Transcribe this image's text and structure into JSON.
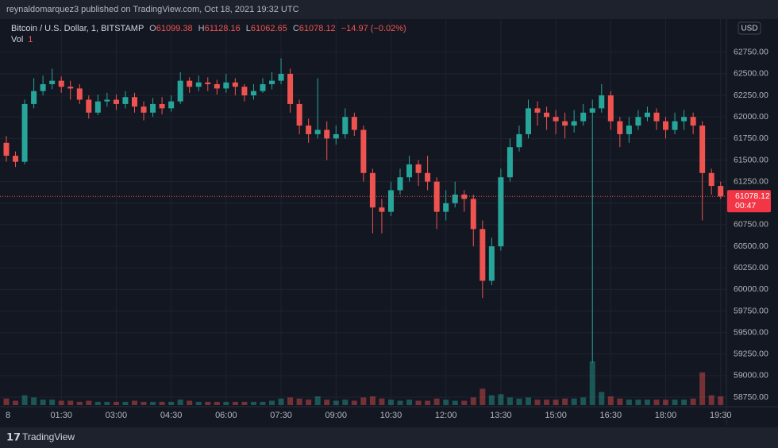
{
  "page_header": "reynaldomarquez3 published on TradingView.com, Oct 18, 2021 19:32 UTC",
  "footer_brand": "TradingView",
  "currency": "USD",
  "legend": {
    "symbol": "Bitcoin / U.S. Dollar, 1, BITSTAMP",
    "open_label": "O",
    "open": 61099.38,
    "high_label": "H",
    "high": 61128.16,
    "low_label": "L",
    "low": 61062.65,
    "close_label": "C",
    "close": 61078.12,
    "change": "−14.97 (−0.02%)",
    "volume_label": "Vol",
    "volume": 1
  },
  "countdown": "00:47",
  "chart_data": {
    "type": "candlestick",
    "up_color": "#26a69a",
    "down_color": "#ef5350",
    "grid": true,
    "x": [
      "00:00",
      "00:15",
      "00:30",
      "00:45",
      "01:00",
      "01:15",
      "01:30",
      "01:45",
      "02:00",
      "02:15",
      "02:30",
      "02:45",
      "03:00",
      "03:15",
      "03:30",
      "03:45",
      "04:00",
      "04:15",
      "04:30",
      "04:45",
      "05:00",
      "05:15",
      "05:30",
      "05:45",
      "06:00",
      "06:15",
      "06:30",
      "06:45",
      "07:00",
      "07:15",
      "07:30",
      "07:45",
      "08:00",
      "08:15",
      "08:30",
      "08:45",
      "09:00",
      "09:15",
      "09:30",
      "09:45",
      "10:00",
      "10:15",
      "10:30",
      "10:45",
      "11:00",
      "11:15",
      "11:30",
      "11:45",
      "12:00",
      "12:15",
      "12:30",
      "12:45",
      "13:00",
      "13:15",
      "13:30",
      "13:45",
      "14:00",
      "14:15",
      "14:30",
      "14:45",
      "15:00",
      "15:15",
      "15:30",
      "15:45",
      "16:00",
      "16:15",
      "16:30",
      "16:45",
      "17:00",
      "17:15",
      "17:30",
      "17:45",
      "18:00",
      "18:15",
      "18:30",
      "18:45",
      "19:00",
      "19:15",
      "19:30"
    ],
    "open": [
      61700,
      61550,
      61480,
      62150,
      62300,
      62380,
      62420,
      62350,
      62330,
      62200,
      62050,
      62180,
      62200,
      62150,
      62230,
      62120,
      62050,
      62150,
      62100,
      62180,
      62420,
      62350,
      62400,
      62380,
      62330,
      62400,
      62350,
      62250,
      62300,
      62380,
      62420,
      62500,
      62150,
      61900,
      61800,
      61850,
      61750,
      61800,
      62000,
      61850,
      61350,
      60950,
      60900,
      61150,
      61300,
      61450,
      61350,
      61250,
      60900,
      61000,
      61100,
      61050,
      60700,
      60100,
      60500,
      61300,
      61650,
      61800,
      62100,
      62050,
      62000,
      61950,
      61900,
      61950,
      62050,
      62100,
      62250,
      61950,
      61800,
      61900,
      62000,
      62050,
      61950,
      61850,
      61950,
      62000,
      61900,
      61350,
      61200
    ],
    "high": [
      61780,
      61600,
      62200,
      62450,
      62480,
      62560,
      62470,
      62420,
      62380,
      62250,
      62260,
      62280,
      62260,
      62300,
      62280,
      62180,
      62220,
      62230,
      62250,
      62520,
      62460,
      62480,
      62460,
      62430,
      62500,
      62450,
      62380,
      62380,
      62450,
      62520,
      62680,
      62560,
      62200,
      61980,
      62450,
      61950,
      61900,
      62100,
      62050,
      61900,
      61400,
      61050,
      61250,
      61400,
      61550,
      61500,
      61550,
      61300,
      61150,
      61250,
      61150,
      61100,
      60800,
      60600,
      61400,
      61750,
      61900,
      62200,
      62180,
      62120,
      62080,
      62050,
      62080,
      62150,
      62200,
      62380,
      62300,
      62000,
      62000,
      62080,
      62120,
      62100,
      62000,
      62050,
      62080,
      62050,
      61950,
      61400,
      61250
    ],
    "low": [
      61480,
      61420,
      61450,
      62100,
      62250,
      62320,
      62280,
      62200,
      62150,
      61980,
      62020,
      62120,
      62080,
      62100,
      62050,
      61960,
      62000,
      62030,
      62060,
      62150,
      62280,
      62300,
      62300,
      62260,
      62280,
      62250,
      62180,
      62200,
      62280,
      62320,
      62380,
      62050,
      61800,
      61700,
      61750,
      61500,
      61680,
      61750,
      61780,
      61250,
      60650,
      60650,
      60850,
      61100,
      61250,
      61200,
      61150,
      60700,
      60800,
      60950,
      60900,
      60500,
      59900,
      60050,
      60450,
      61250,
      61600,
      61750,
      61900,
      61850,
      61800,
      61750,
      61820,
      61900,
      59150,
      62050,
      61850,
      61650,
      61700,
      61850,
      61950,
      61850,
      61750,
      61800,
      61850,
      61800,
      60800,
      61100,
      61050
    ],
    "close": [
      61550,
      61480,
      62150,
      62300,
      62380,
      62420,
      62350,
      62330,
      62200,
      62050,
      62180,
      62200,
      62150,
      62230,
      62120,
      62050,
      62150,
      62100,
      62180,
      62420,
      62350,
      62400,
      62380,
      62330,
      62400,
      62350,
      62250,
      62300,
      62380,
      62420,
      62500,
      62150,
      61900,
      61800,
      61850,
      61750,
      61800,
      62000,
      61850,
      61350,
      60950,
      60900,
      61150,
      61300,
      61450,
      61350,
      61250,
      60900,
      61000,
      61100,
      61050,
      60700,
      60100,
      60500,
      61300,
      61650,
      61800,
      62100,
      62050,
      62000,
      61950,
      61900,
      61950,
      62050,
      62100,
      62250,
      61950,
      61800,
      61900,
      62000,
      62050,
      61950,
      61850,
      61950,
      62000,
      61900,
      61350,
      61200,
      61078.12
    ],
    "volume": [
      6,
      4,
      9,
      7,
      5,
      5,
      4,
      4,
      3,
      4,
      3,
      3,
      3,
      3,
      4,
      3,
      3,
      3,
      3,
      5,
      4,
      3,
      3,
      3,
      3,
      3,
      3,
      3,
      3,
      4,
      6,
      7,
      6,
      5,
      8,
      5,
      4,
      5,
      4,
      7,
      8,
      6,
      5,
      4,
      5,
      4,
      4,
      6,
      5,
      4,
      4,
      7,
      15,
      9,
      10,
      7,
      6,
      7,
      5,
      5,
      5,
      6,
      6,
      7,
      40,
      12,
      8,
      6,
      5,
      5,
      5,
      5,
      5,
      5,
      5,
      6,
      30,
      9,
      8
    ],
    "ylim": [
      58640,
      63135
    ],
    "yticks": [
      {
        "value": 58750,
        "label": "58750.00"
      },
      {
        "value": 59000,
        "label": "59000.00"
      },
      {
        "value": 59250,
        "label": "59250.00"
      },
      {
        "value": 59500,
        "label": "59500.00"
      },
      {
        "value": 59750,
        "label": "59750.00"
      },
      {
        "value": 60000,
        "label": "60000.00"
      },
      {
        "value": 60250,
        "label": "60250.00"
      },
      {
        "value": 60500,
        "label": "60500.00"
      },
      {
        "value": 60750,
        "label": "60750.00"
      },
      {
        "value": 61000,
        "label": "61000.00"
      },
      {
        "value": 61250,
        "label": "61250.00"
      },
      {
        "value": 61500,
        "label": "61500.00"
      },
      {
        "value": 61750,
        "label": "61750.00"
      },
      {
        "value": 62000,
        "label": "62000.00"
      },
      {
        "value": 62250,
        "label": "62250.00"
      },
      {
        "value": 62500,
        "label": "62500.00"
      },
      {
        "value": 62750,
        "label": "62750.00"
      }
    ],
    "day_label": "8",
    "xticks": [
      "01:30",
      "03:00",
      "04:30",
      "06:00",
      "07:30",
      "09:00",
      "10:30",
      "12:00",
      "13:30",
      "15:00",
      "16:30",
      "18:00",
      "19:30"
    ]
  }
}
